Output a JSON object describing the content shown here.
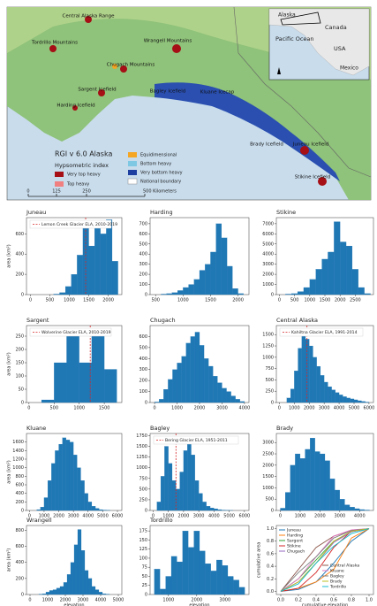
{
  "map": {
    "regions": [
      "Central Alaska Range",
      "Tordrillo Mountains",
      "Wrangell Mountains",
      "Chugach Mountains",
      "Sargent Icefield",
      "Harding Icefield",
      "Bagley Icefield",
      "Kluane Icecap",
      "Brady Icefield",
      "Juneau Icefield",
      "Stikine Icefield"
    ],
    "legend_title": "RGI v 6.0 Alaska",
    "legend_subtitle": "Hypsometric index",
    "legend_items": [
      "Very top heavy",
      "Top heavy",
      "Equidimensional",
      "Bottom heavy",
      "Very bottom heavy",
      "National boundary"
    ],
    "scale_labels": [
      "0",
      "125",
      "250",
      "500 Kilometers"
    ],
    "inset_labels": [
      "Alaska",
      "Canada",
      "Pacific Ocean",
      "USA",
      "Mexico"
    ]
  },
  "chart_data": [
    {
      "type": "histogram",
      "title": "Juneau",
      "ylabel": "area (km²)",
      "color": "#1f77b4",
      "bins": [
        600,
        750,
        900,
        1050,
        1200,
        1350,
        1500,
        1650,
        1800,
        1950,
        2100,
        2250
      ],
      "values": [
        5,
        20,
        80,
        200,
        390,
        690,
        480,
        700,
        600,
        740,
        330
      ],
      "xlim": [
        -100,
        2350
      ],
      "ylim": [
        0,
        760
      ],
      "xticks": [
        0,
        500,
        1000,
        1500,
        2000
      ],
      "yticks": [
        0,
        200,
        400,
        600
      ],
      "reference_line": {
        "label": "Lemon Creek Glacier ELA, 2010-2019",
        "value": 1420
      }
    },
    {
      "type": "histogram",
      "title": "Harding",
      "color": "#1f77b4",
      "bins": [
        600,
        700,
        800,
        900,
        1000,
        1100,
        1200,
        1300,
        1400,
        1500,
        1600,
        1700,
        1800,
        1900,
        2000,
        2100
      ],
      "values": [
        5,
        10,
        20,
        40,
        70,
        100,
        150,
        240,
        300,
        420,
        700,
        560,
        280,
        60,
        10
      ],
      "xlim": [
        400,
        2200
      ],
      "ylim": [
        0,
        760
      ],
      "xticks": [
        500,
        1000,
        1500,
        2000
      ],
      "yticks": [
        0,
        100,
        200,
        300,
        400,
        500,
        600,
        700
      ]
    },
    {
      "type": "histogram",
      "title": "Stikine",
      "color": "#1f77b4",
      "bins": [
        200,
        400,
        600,
        800,
        1000,
        1200,
        1400,
        1600,
        1800,
        2000,
        2200,
        2400,
        2600,
        2800,
        3000
      ],
      "values": [
        50,
        100,
        300,
        700,
        1500,
        2500,
        3500,
        4200,
        7200,
        5200,
        4800,
        2500,
        700,
        100
      ],
      "xlim": [
        -100,
        3100
      ],
      "ylim": [
        0,
        7600
      ],
      "xticks": [
        0,
        500,
        1000,
        1500,
        2000,
        2500
      ],
      "yticks": [
        0,
        1000,
        2000,
        3000,
        4000,
        5000,
        6000,
        7000
      ]
    },
    {
      "type": "histogram",
      "title": "Sargent",
      "ylabel": "area (km²)",
      "color": "#1f77b4",
      "bins": [
        250,
        500,
        750,
        1000,
        1250,
        1500,
        1750
      ],
      "values": [
        10,
        150,
        265,
        150,
        265,
        125
      ],
      "xlim": [
        -50,
        1850
      ],
      "ylim": [
        0,
        290
      ],
      "xticks": [
        0,
        500,
        1000,
        1500
      ],
      "yticks": [
        0,
        50,
        100,
        150,
        200,
        250
      ],
      "reference_line": {
        "label": "Wolverine Glacier ELA, 2010-2019",
        "value": 1220
      }
    },
    {
      "type": "histogram",
      "title": "Chugach",
      "color": "#1f77b4",
      "bins": [
        0,
        200,
        400,
        600,
        800,
        1000,
        1200,
        1400,
        1600,
        1800,
        2000,
        2200,
        2400,
        2600,
        2800,
        3000,
        3200,
        3400,
        3600,
        3800,
        4000
      ],
      "values": [
        5,
        30,
        120,
        210,
        300,
        360,
        420,
        540,
        600,
        640,
        520,
        400,
        330,
        240,
        180,
        130,
        100,
        60,
        30,
        10
      ],
      "xlim": [
        -200,
        4200
      ],
      "ylim": [
        0,
        700
      ],
      "xticks": [
        0,
        1000,
        2000,
        3000,
        4000
      ],
      "yticks": [
        0,
        100,
        200,
        300,
        400,
        500,
        600
      ]
    },
    {
      "type": "histogram",
      "title": "Central Alaska",
      "color": "#1f77b4",
      "bins": [
        500,
        750,
        1000,
        1250,
        1500,
        1750,
        2000,
        2250,
        2500,
        2750,
        3000,
        3250,
        3500,
        3750,
        4000,
        4250,
        4500,
        4750,
        5000,
        5250,
        5500,
        5750,
        6000
      ],
      "values": [
        100,
        300,
        700,
        1200,
        1550,
        1400,
        1250,
        1000,
        800,
        600,
        450,
        350,
        280,
        220,
        170,
        130,
        100,
        80,
        60,
        40,
        25,
        10
      ],
      "xlim": [
        -200,
        6300
      ],
      "ylim": [
        0,
        1700
      ],
      "xticks": [
        0,
        1000,
        2000,
        3000,
        4000,
        5000,
        6000
      ],
      "yticks": [
        0,
        250,
        500,
        750,
        1000,
        1250,
        1500
      ],
      "reference_line": {
        "label": "Kahiltna Glacier ELA, 1991-2014",
        "value": 1850
      }
    },
    {
      "type": "histogram",
      "title": "Kluane",
      "ylabel": "area (km²)",
      "color": "#1f77b4",
      "bins": [
        500,
        750,
        1000,
        1250,
        1500,
        1750,
        2000,
        2250,
        2500,
        2750,
        3000,
        3250,
        3500,
        3750,
        4000,
        4250,
        4500,
        4750,
        5000,
        5250,
        5500
      ],
      "values": [
        20,
        80,
        300,
        700,
        1100,
        1400,
        1550,
        1700,
        1650,
        1600,
        1300,
        1000,
        700,
        400,
        200,
        100,
        50,
        20,
        10,
        5
      ],
      "xlim": [
        -200,
        6300
      ],
      "ylim": [
        0,
        1800
      ],
      "xticks": [
        0,
        1000,
        2000,
        3000,
        4000,
        5000,
        6000
      ],
      "yticks": [
        0,
        200,
        400,
        600,
        800,
        1000,
        1200,
        1400,
        1600
      ]
    },
    {
      "type": "histogram",
      "title": "Bagley",
      "color": "#1f77b4",
      "bins": [
        250,
        500,
        750,
        1000,
        1250,
        1500,
        1750,
        2000,
        2250,
        2500,
        2750,
        3000,
        3250,
        3500,
        3750,
        4000,
        4250,
        4500,
        4750,
        5000,
        5250
      ],
      "values": [
        200,
        800,
        1500,
        1100,
        700,
        500,
        900,
        1400,
        1550,
        1300,
        700,
        400,
        200,
        100,
        60,
        40,
        20,
        10,
        5,
        2
      ],
      "xlim": [
        -200,
        6300
      ],
      "ylim": [
        0,
        1800
      ],
      "xticks": [
        0,
        1000,
        2000,
        3000,
        4000,
        5000,
        6000
      ],
      "yticks": [
        0,
        250,
        500,
        750,
        1000,
        1250,
        1500,
        1750
      ],
      "reference_line": {
        "label": "Bering Glacier ELA, 1951-2011",
        "value": 1500
      }
    },
    {
      "type": "histogram",
      "title": "Brady",
      "color": "#1f77b4",
      "bins": [
        0,
        250,
        500,
        750,
        1000,
        1250,
        1500,
        1750,
        2000,
        2250,
        2500,
        2750,
        3000,
        3250,
        3500,
        3750,
        4000,
        4250,
        4500
      ],
      "values": [
        100,
        800,
        2000,
        2500,
        2300,
        2700,
        3200,
        2600,
        2500,
        2200,
        1400,
        900,
        500,
        250,
        150,
        80,
        40,
        20
      ],
      "xlim": [
        -200,
        4700
      ],
      "ylim": [
        0,
        3400
      ],
      "xticks": [
        0,
        1000,
        2000,
        3000,
        4000
      ],
      "yticks": [
        0,
        500,
        1000,
        1500,
        2000,
        2500,
        3000
      ]
    },
    {
      "type": "histogram",
      "title": "Wrangell",
      "ylabel": "area (km²)",
      "xlabel": "elevation",
      "color": "#1f77b4",
      "bins": [
        500,
        700,
        900,
        1100,
        1300,
        1500,
        1700,
        1900,
        2100,
        2300,
        2500,
        2700,
        2900,
        3100,
        3300,
        3500,
        3700,
        3900,
        4100,
        4300,
        4500
      ],
      "values": [
        5,
        10,
        30,
        50,
        60,
        80,
        100,
        150,
        250,
        400,
        620,
        810,
        550,
        300,
        200,
        100,
        60,
        30,
        10,
        5
      ],
      "xlim": [
        -200,
        5200
      ],
      "ylim": [
        0,
        860
      ],
      "xticks": [
        0,
        1000,
        2000,
        3000,
        4000,
        5000
      ],
      "yticks": [
        0,
        200,
        400,
        600,
        800
      ]
    },
    {
      "type": "histogram",
      "title": "Tordrillo",
      "xlabel": "elevation",
      "color": "#1f77b4",
      "bins": [
        500,
        700,
        900,
        1100,
        1300,
        1500,
        1700,
        1900,
        2100,
        2300,
        2500,
        2700,
        2900,
        3100,
        3300,
        3500,
        3700
      ],
      "values": [
        70,
        15,
        50,
        105,
        90,
        175,
        130,
        175,
        120,
        85,
        65,
        95,
        80,
        50,
        40,
        20
      ],
      "xlim": [
        350,
        3850
      ],
      "ylim": [
        0,
        190
      ],
      "xticks": [
        1000,
        2000,
        3000
      ],
      "yticks": [
        0,
        25,
        50,
        75,
        100,
        125,
        150,
        175
      ]
    },
    {
      "type": "line",
      "xlabel": "cumulative elevation",
      "ylabel": "cumulative area",
      "x": [
        0,
        0.2,
        0.4,
        0.6,
        0.8,
        1
      ],
      "series": [
        {
          "name": "Juneau",
          "color": "#1f77b4",
          "values": [
            0,
            0.03,
            0.15,
            0.45,
            0.8,
            1
          ]
        },
        {
          "name": "Harding",
          "color": "#ff7f0e",
          "values": [
            0,
            0.05,
            0.15,
            0.35,
            0.85,
            1
          ]
        },
        {
          "name": "Sargent",
          "color": "#2ca02c",
          "values": [
            0,
            0.2,
            0.5,
            0.8,
            0.95,
            1
          ]
        },
        {
          "name": "Stikine",
          "color": "#d62728",
          "values": [
            0,
            0.05,
            0.3,
            0.7,
            0.96,
            1
          ]
        },
        {
          "name": "Chugach",
          "color": "#9467bd",
          "values": [
            0,
            0.15,
            0.45,
            0.78,
            0.95,
            1
          ]
        },
        {
          "name": "Central Alaska",
          "color": "#8c564b",
          "values": [
            0,
            0.35,
            0.7,
            0.88,
            0.97,
            1
          ]
        },
        {
          "name": "Kluane",
          "color": "#e377c2",
          "values": [
            0,
            0.2,
            0.55,
            0.88,
            0.98,
            1
          ]
        },
        {
          "name": "Bagley",
          "color": "#7f7f7f",
          "values": [
            0,
            0.3,
            0.55,
            0.85,
            0.97,
            1
          ]
        },
        {
          "name": "Brady",
          "color": "#bcbd22",
          "values": [
            0,
            0.15,
            0.45,
            0.8,
            0.96,
            1
          ]
        },
        {
          "name": "Tordrillo",
          "color": "#17becf",
          "values": [
            0,
            0.12,
            0.45,
            0.72,
            0.92,
            1
          ]
        }
      ],
      "xlim": [
        -0.05,
        1.05
      ],
      "ylim": [
        -0.05,
        1.05
      ],
      "xticks": [
        {
          "value": 0,
          "label": "0.0"
        },
        0.2,
        0.4,
        0.6,
        0.8,
        {
          "value": 1,
          "label": "1.0"
        }
      ],
      "yticks": [
        {
          "value": 0,
          "label": "0.0"
        },
        0.2,
        0.4,
        0.6,
        0.8,
        {
          "value": 1,
          "label": "1.0"
        }
      ]
    }
  ]
}
